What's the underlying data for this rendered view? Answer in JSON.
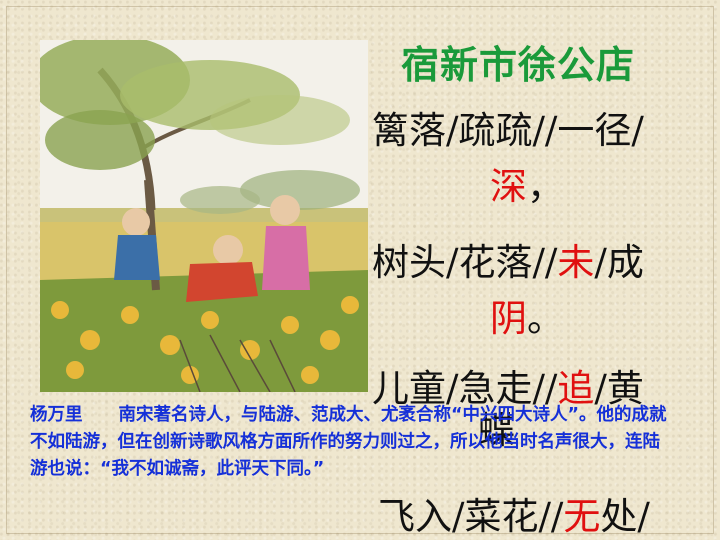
{
  "title": "宿新市徐公店",
  "poem": {
    "line1": "篱落/疏疏//一径/",
    "line1_red": "深",
    "line1_end": "，",
    "line2": "树头/花落//",
    "line2_red": "未",
    "line2_after": "/成",
    "line2_red2": "阴",
    "line2_end": "。",
    "line3": "儿童/急走//",
    "line3_red": "追",
    "line3_after": "/黄",
    "line3_cont": "蝶",
    "line4": "飞入/菜花//",
    "line4_red": "无",
    "line4_after": "处/"
  },
  "author": {
    "name": "杨万里",
    "bio": "南宋著名诗人，与陆游、范成大、尤袤合称“中兴四大诗人”。他的成就不如陆游，但在创新诗歌风格方面所作的努力则过之，所以他当时名声很大，连陆游也说：“我不如诚斋，此评天下同。”"
  },
  "colors": {
    "title": "#1a9a3a",
    "highlight": "#e01010",
    "bio": "#1530d8"
  }
}
